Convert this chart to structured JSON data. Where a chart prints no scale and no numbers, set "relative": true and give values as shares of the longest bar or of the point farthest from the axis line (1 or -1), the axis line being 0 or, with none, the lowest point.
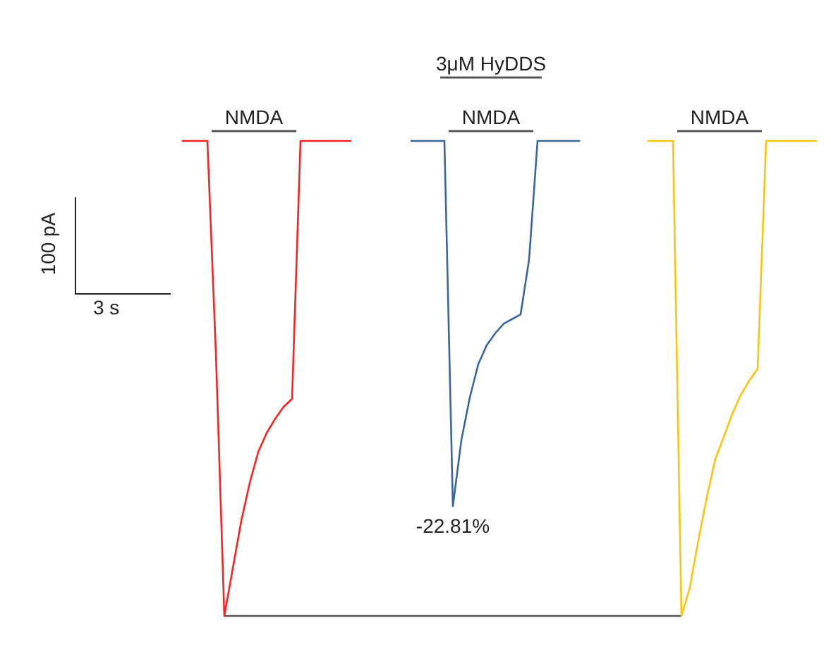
{
  "chart_data": {
    "type": "line",
    "relative": true,
    "legend": false,
    "marker": "none",
    "line_style": "solid",
    "categories": [
      null,
      null,
      null,
      null,
      null,
      null,
      null,
      null,
      null,
      null,
      null,
      null,
      null,
      null,
      null,
      null,
      null,
      null,
      null,
      null,
      null,
      null,
      null,
      null,
      null,
      null,
      null,
      null,
      null,
      null,
      null,
      null,
      null,
      null,
      null,
      null,
      null,
      null,
      null,
      null,
      null,
      null,
      null,
      null,
      null,
      null,
      null,
      null,
      null,
      null,
      null,
      null,
      null,
      null,
      null,
      null,
      null,
      null,
      null,
      null,
      null,
      null,
      null,
      null,
      null,
      null,
      null,
      null,
      null,
      null,
      null,
      null,
      null,
      null,
      null,
      null
    ],
    "series": [
      {
        "color": "#ff2020",
        "values": [
          1,
          1,
          1,
          1,
          0.555,
          0,
          0.1,
          0.2,
          0.28,
          0.345,
          0.385,
          0.415,
          0.44,
          0.457,
          1,
          1,
          1,
          1,
          1,
          1,
          1,
          null,
          null,
          null,
          null,
          null,
          null,
          null,
          null,
          null,
          null,
          null,
          null,
          null,
          null,
          null,
          null,
          null,
          null,
          null,
          null,
          null,
          null,
          null,
          null,
          null,
          null,
          null,
          null,
          null,
          null,
          null,
          null,
          null,
          null,
          null,
          null,
          null,
          null,
          null,
          null,
          null,
          null,
          null,
          null,
          null,
          null,
          null,
          null,
          null,
          null,
          null,
          null,
          null,
          null,
          null
        ]
      },
      {
        "color": "#3a66a0",
        "values": [
          null,
          null,
          null,
          null,
          null,
          null,
          null,
          null,
          null,
          null,
          null,
          null,
          null,
          null,
          null,
          null,
          null,
          null,
          null,
          null,
          null,
          null,
          null,
          null,
          null,
          null,
          null,
          1,
          1,
          1,
          1,
          1,
          0.231,
          0.37,
          0.46,
          0.53,
          0.57,
          0.595,
          0.615,
          0.625,
          0.635,
          0.75,
          1,
          1,
          1,
          1,
          1,
          1,
          null,
          null,
          null,
          null,
          null,
          null,
          null,
          null,
          null,
          null,
          null,
          null,
          null,
          null,
          null,
          null,
          null,
          null,
          null,
          null,
          null,
          null,
          null,
          null,
          null,
          null,
          null,
          null
        ]
      },
      {
        "color": "#ffc20e",
        "values": [
          null,
          null,
          null,
          null,
          null,
          null,
          null,
          null,
          null,
          null,
          null,
          null,
          null,
          null,
          null,
          null,
          null,
          null,
          null,
          null,
          null,
          null,
          null,
          null,
          null,
          null,
          null,
          null,
          null,
          null,
          null,
          null,
          null,
          null,
          null,
          null,
          null,
          null,
          null,
          null,
          null,
          null,
          null,
          null,
          null,
          null,
          null,
          null,
          null,
          null,
          null,
          null,
          null,
          null,
          null,
          1,
          1,
          1,
          1,
          0,
          0.06,
          0.16,
          0.25,
          0.33,
          0.377,
          0.425,
          0.465,
          0.495,
          0.52,
          1,
          1,
          1,
          1,
          1,
          1,
          1
        ]
      },
      {
        "color": "#555555",
        "values": [
          null,
          null,
          null,
          null,
          null,
          0,
          null,
          null,
          null,
          null,
          null,
          null,
          null,
          null,
          null,
          null,
          null,
          null,
          null,
          null,
          null,
          null,
          null,
          null,
          null,
          null,
          null,
          null,
          null,
          null,
          null,
          null,
          null,
          null,
          null,
          null,
          null,
          null,
          null,
          null,
          null,
          null,
          null,
          null,
          null,
          null,
          null,
          null,
          null,
          null,
          null,
          null,
          null,
          null,
          null,
          null,
          null,
          null,
          null,
          0,
          null,
          null,
          null,
          null,
          null,
          null,
          null,
          null,
          null,
          null,
          null,
          null,
          null,
          null,
          null,
          null
        ]
      }
    ],
    "annotations": [
      "NMDA",
      "NMDA",
      "NMDA",
      "3μM HyDDS",
      "100 pA",
      "3 s",
      "-22.81%"
    ]
  }
}
